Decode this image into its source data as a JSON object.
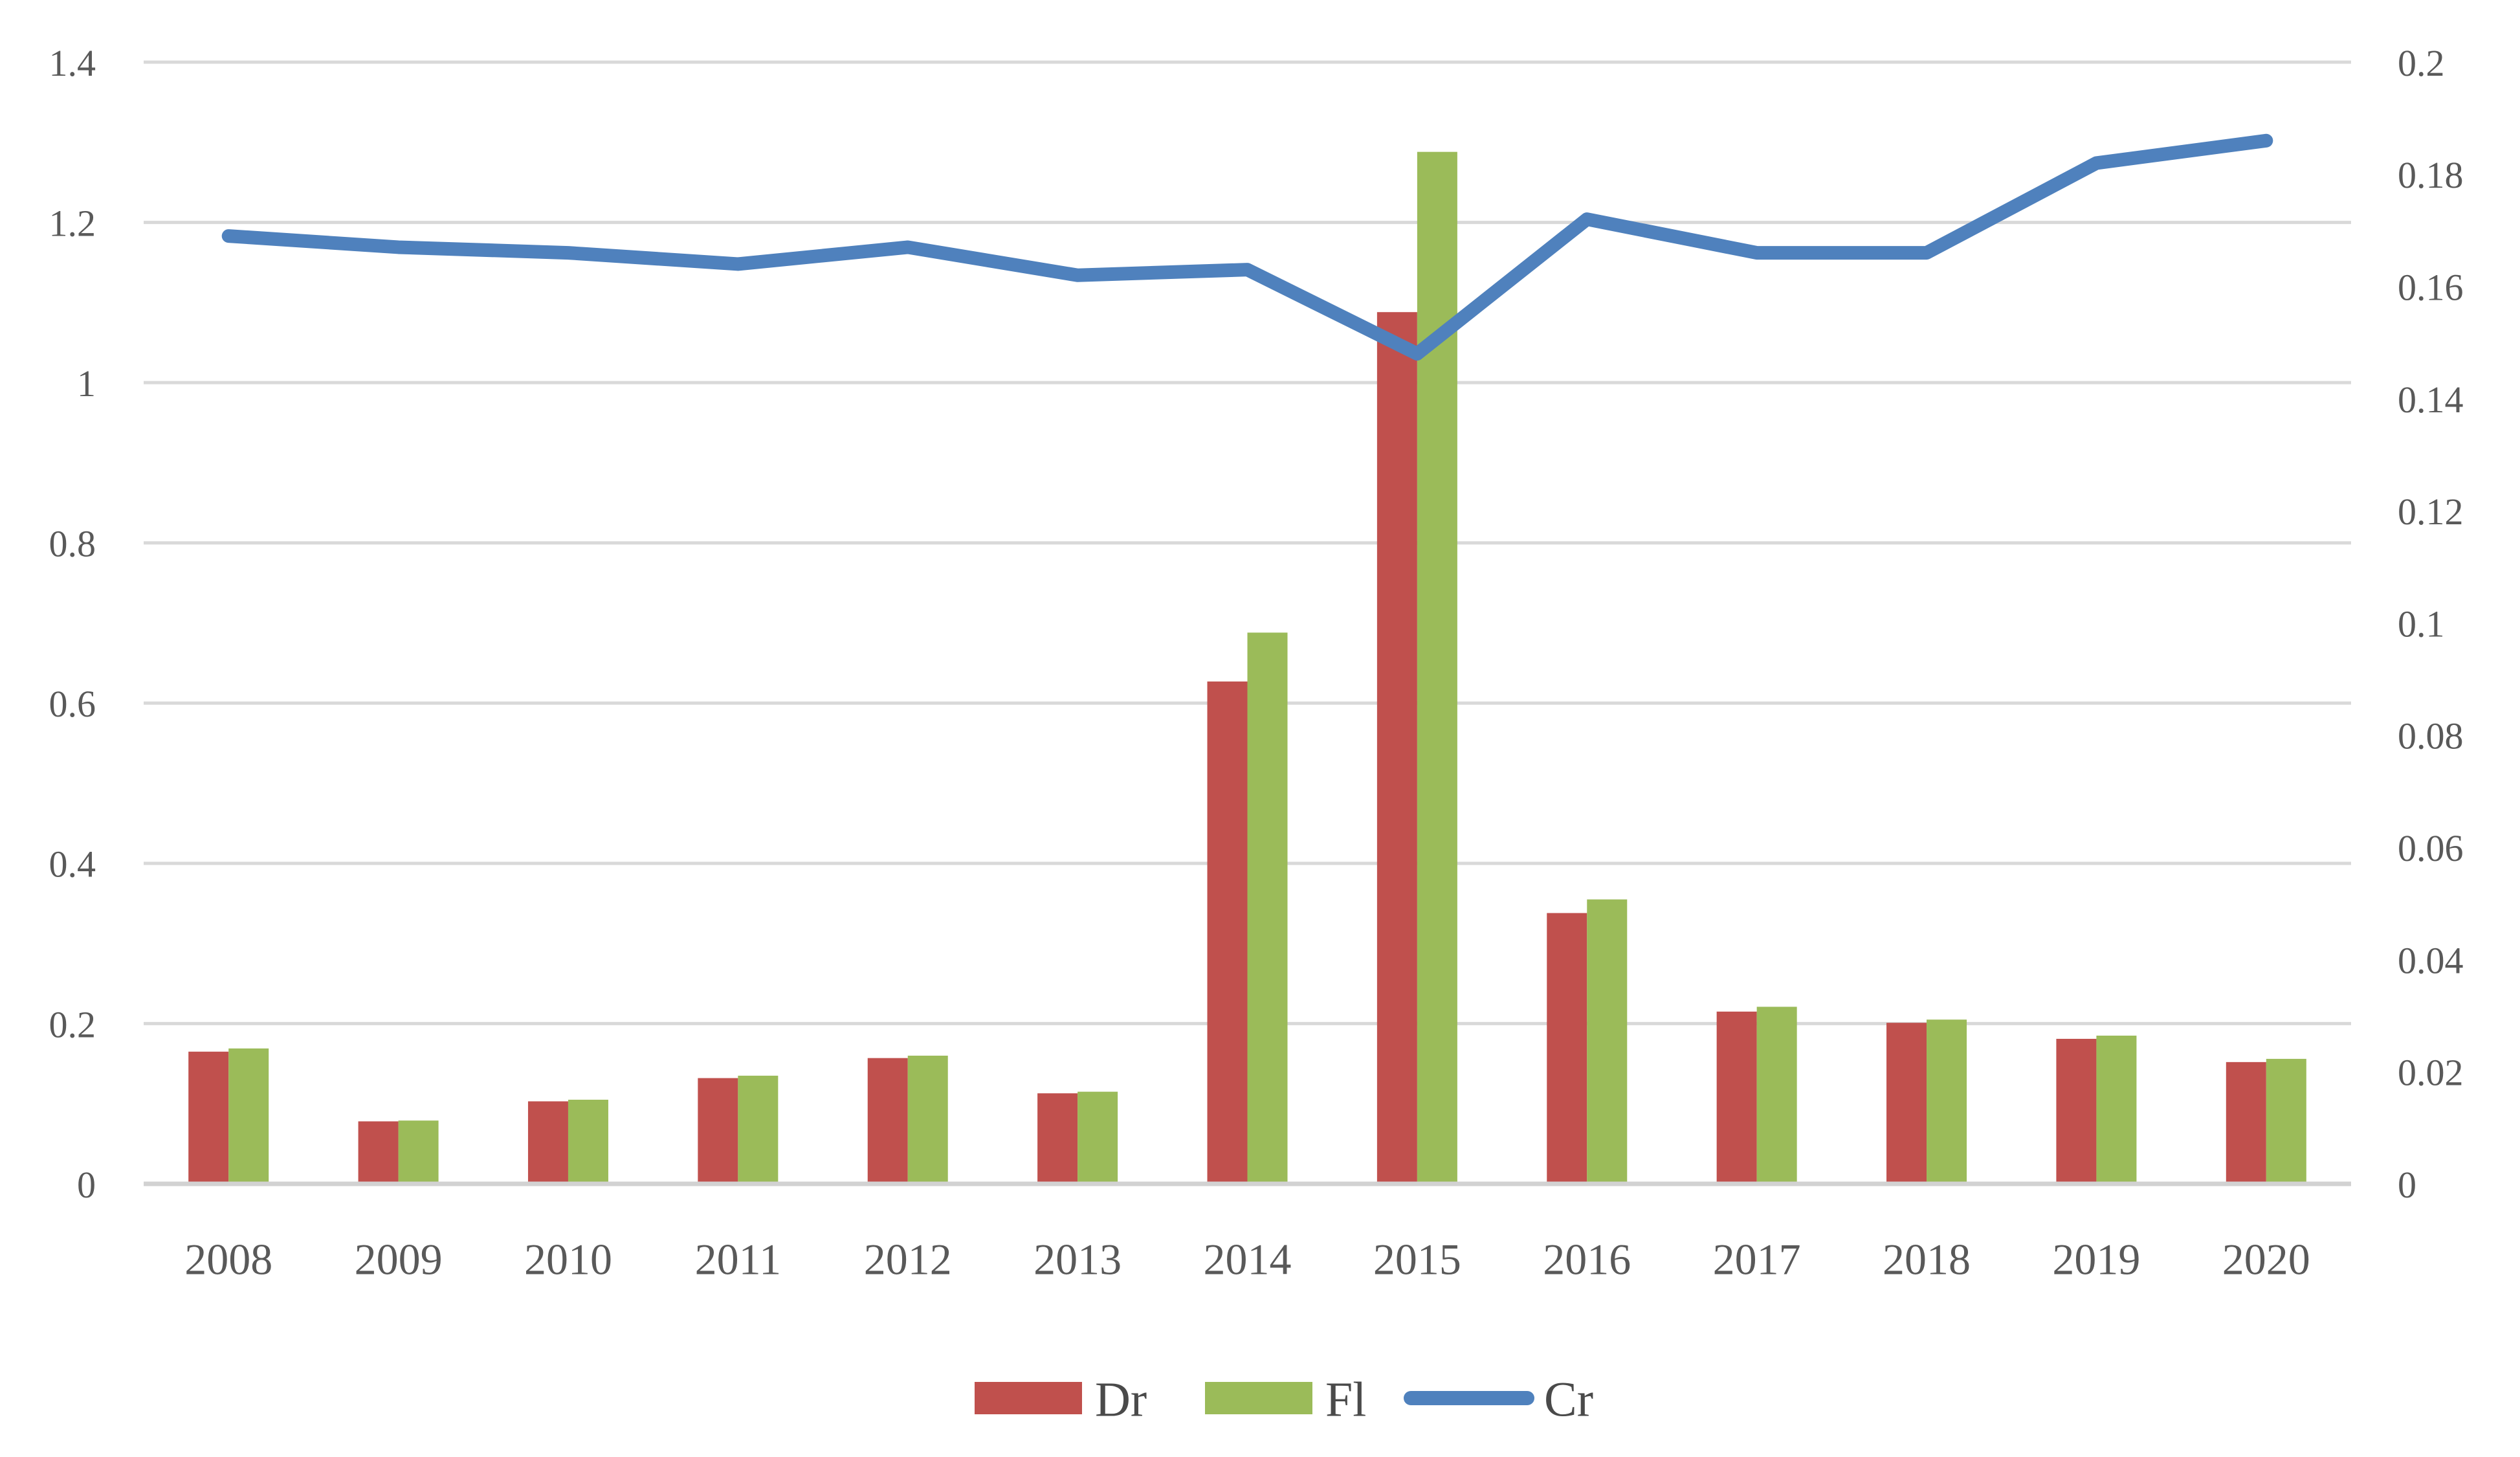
{
  "chart_data": {
    "type": "bar+line",
    "title": "",
    "categories": [
      "2008",
      "2009",
      "2010",
      "2011",
      "2012",
      "2013",
      "2014",
      "2015",
      "2016",
      "2017",
      "2018",
      "2019",
      "2020"
    ],
    "series": [
      {
        "name": "Dr",
        "type": "bar",
        "axis": "left",
        "color": "#C0504D",
        "values": [
          0.165,
          0.078,
          0.103,
          0.132,
          0.157,
          0.113,
          0.627,
          1.088,
          0.338,
          0.215,
          0.201,
          0.181,
          0.152
        ]
      },
      {
        "name": "Fl",
        "type": "bar",
        "axis": "left",
        "color": "#9BBB59",
        "values": [
          0.169,
          0.079,
          0.105,
          0.135,
          0.16,
          0.115,
          0.688,
          1.288,
          0.355,
          0.221,
          0.205,
          0.185,
          0.156
        ]
      },
      {
        "name": "Cr",
        "type": "line",
        "axis": "right",
        "color": "#4F81BD",
        "values": [
          0.169,
          0.167,
          0.166,
          0.164,
          0.167,
          0.162,
          0.163,
          0.148,
          0.172,
          0.166,
          0.166,
          0.182,
          0.186
        ]
      }
    ],
    "left_axis": {
      "min": 0,
      "max": 1.4,
      "step": 0.2,
      "tick_labels": [
        "0",
        "0.2",
        "0.4",
        "0.6",
        "0.8",
        "1",
        "1.2",
        "1.4"
      ],
      "tick_values": [
        0,
        0.2,
        0.4,
        0.6,
        0.8,
        1.0,
        1.2,
        1.4
      ]
    },
    "right_axis": {
      "min": 0,
      "max": 0.2,
      "step": 0.02,
      "tick_labels": [
        "0",
        "0.02",
        "0.04",
        "0.06",
        "0.08",
        "0.1",
        "0.12",
        "0.14",
        "0.16",
        "0.18",
        "0.2"
      ],
      "tick_values": [
        0,
        0.02,
        0.04,
        0.06,
        0.08,
        0.1,
        0.12,
        0.14,
        0.16,
        0.18,
        0.2
      ]
    },
    "grid": true,
    "legend_position": "bottom",
    "colors": {
      "gridline": "#D9D9D9",
      "baseline": "#D2D2D2",
      "axis_text": "#595959",
      "background": "#FFFFFF"
    }
  }
}
